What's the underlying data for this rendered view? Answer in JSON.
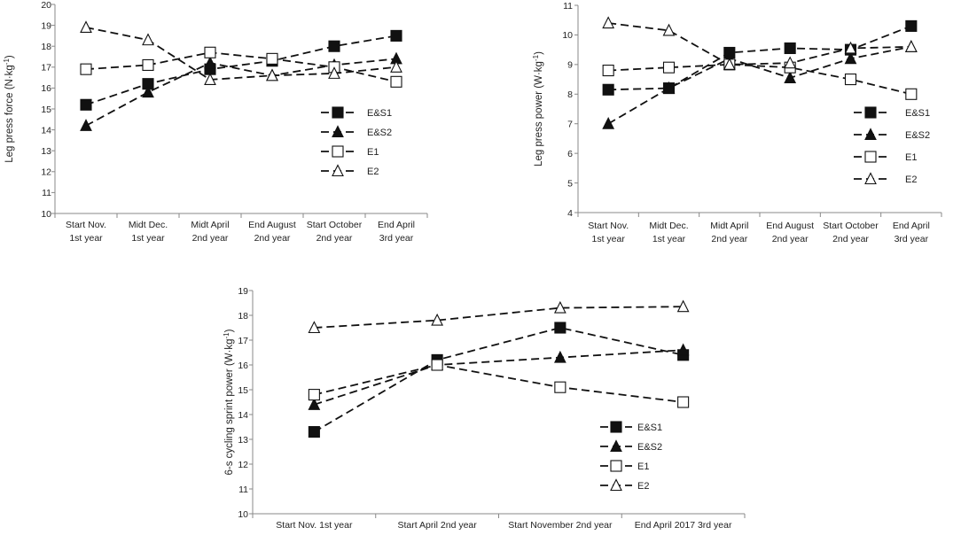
{
  "chart_data": [
    {
      "type": "line",
      "id": "force",
      "title": "",
      "xlabel": "",
      "ylabel": "Leg press force (N·kg",
      "ylabel_sup": "-1",
      "ylabel_tail": ")",
      "ylim": [
        10,
        20
      ],
      "yticks": [
        10,
        11,
        12,
        13,
        14,
        15,
        16,
        17,
        18,
        19,
        20
      ],
      "categories": [
        {
          "l1": "Start Nov.",
          "l2": "1st year"
        },
        {
          "l1": "Midt Dec.",
          "l2": "1st year"
        },
        {
          "l1": "Midt  April",
          "l2": "2nd year"
        },
        {
          "l1": "End August",
          "l2": "2nd year"
        },
        {
          "l1": "Start October",
          "l2": "2nd year"
        },
        {
          "l1": "End April",
          "l2": "3rd year"
        }
      ],
      "legend_position": "right-center",
      "series": [
        {
          "name": "E&S1",
          "marker": "square-filled",
          "values": [
            15.2,
            16.2,
            16.9,
            17.3,
            18.0,
            18.5
          ]
        },
        {
          "name": "E&S2",
          "marker": "triangle-filled",
          "values": [
            14.2,
            15.8,
            17.2,
            16.6,
            17.1,
            17.4
          ]
        },
        {
          "name": "E1",
          "marker": "square-open",
          "values": [
            16.9,
            17.1,
            17.7,
            17.4,
            17.0,
            16.3
          ]
        },
        {
          "name": "E2",
          "marker": "triangle-open",
          "values": [
            18.9,
            18.3,
            16.4,
            16.6,
            16.7,
            17.0
          ]
        }
      ]
    },
    {
      "type": "line",
      "id": "power",
      "title": "",
      "xlabel": "",
      "ylabel": "Leg press power  (W·kg",
      "ylabel_sup": "-1",
      "ylabel_tail": ")",
      "ylim": [
        4,
        11
      ],
      "yticks": [
        4,
        5,
        6,
        7,
        8,
        9,
        10,
        11
      ],
      "categories": [
        {
          "l1": "Start Nov.",
          "l2": "1st year"
        },
        {
          "l1": "Midt Dec.",
          "l2": "1st year"
        },
        {
          "l1": "Midt  April",
          "l2": "2nd year"
        },
        {
          "l1": "End August",
          "l2": "2nd year"
        },
        {
          "l1": "Start October",
          "l2": "2nd year"
        },
        {
          "l1": "End April",
          "l2": "3rd year"
        }
      ],
      "legend_position": "right-center",
      "series": [
        {
          "name": "E&S1",
          "marker": "square-filled",
          "values": [
            8.15,
            8.2,
            9.4,
            9.55,
            9.5,
            10.3
          ]
        },
        {
          "name": "E&S2",
          "marker": "triangle-filled",
          "values": [
            7.0,
            8.2,
            9.2,
            8.55,
            9.2,
            9.6
          ]
        },
        {
          "name": "E1",
          "marker": "square-open",
          "values": [
            8.8,
            8.9,
            9.0,
            8.9,
            8.5,
            8.0
          ]
        },
        {
          "name": "E2",
          "marker": "triangle-open",
          "values": [
            10.4,
            10.15,
            9.0,
            9.05,
            9.55,
            9.6
          ]
        }
      ]
    },
    {
      "type": "line",
      "id": "sprint",
      "title": "",
      "xlabel": "",
      "ylabel": "6-s cycling sprint power (W·kg",
      "ylabel_sup": "-1",
      "ylabel_tail": ")",
      "ylim": [
        10,
        19
      ],
      "yticks": [
        10,
        11,
        12,
        13,
        14,
        15,
        16,
        17,
        18,
        19
      ],
      "categories": [
        {
          "l1": "Start Nov. 1st year",
          "l2": ""
        },
        {
          "l1": "Start April 2nd year",
          "l2": ""
        },
        {
          "l1": "Start November 2nd year",
          "l2": ""
        },
        {
          "l1": "End April 2017 3rd year",
          "l2": ""
        }
      ],
      "legend_position": "bottom-right",
      "series": [
        {
          "name": "E&S1",
          "marker": "square-filled",
          "values": [
            13.3,
            16.2,
            17.5,
            16.4
          ]
        },
        {
          "name": "E&S2",
          "marker": "triangle-filled",
          "values": [
            14.4,
            16.0,
            16.3,
            16.6
          ]
        },
        {
          "name": "E1",
          "marker": "square-open",
          "values": [
            14.8,
            16.0,
            15.1,
            14.5
          ]
        },
        {
          "name": "E2",
          "marker": "triangle-open",
          "values": [
            17.5,
            17.8,
            18.3,
            18.35
          ]
        }
      ]
    }
  ]
}
